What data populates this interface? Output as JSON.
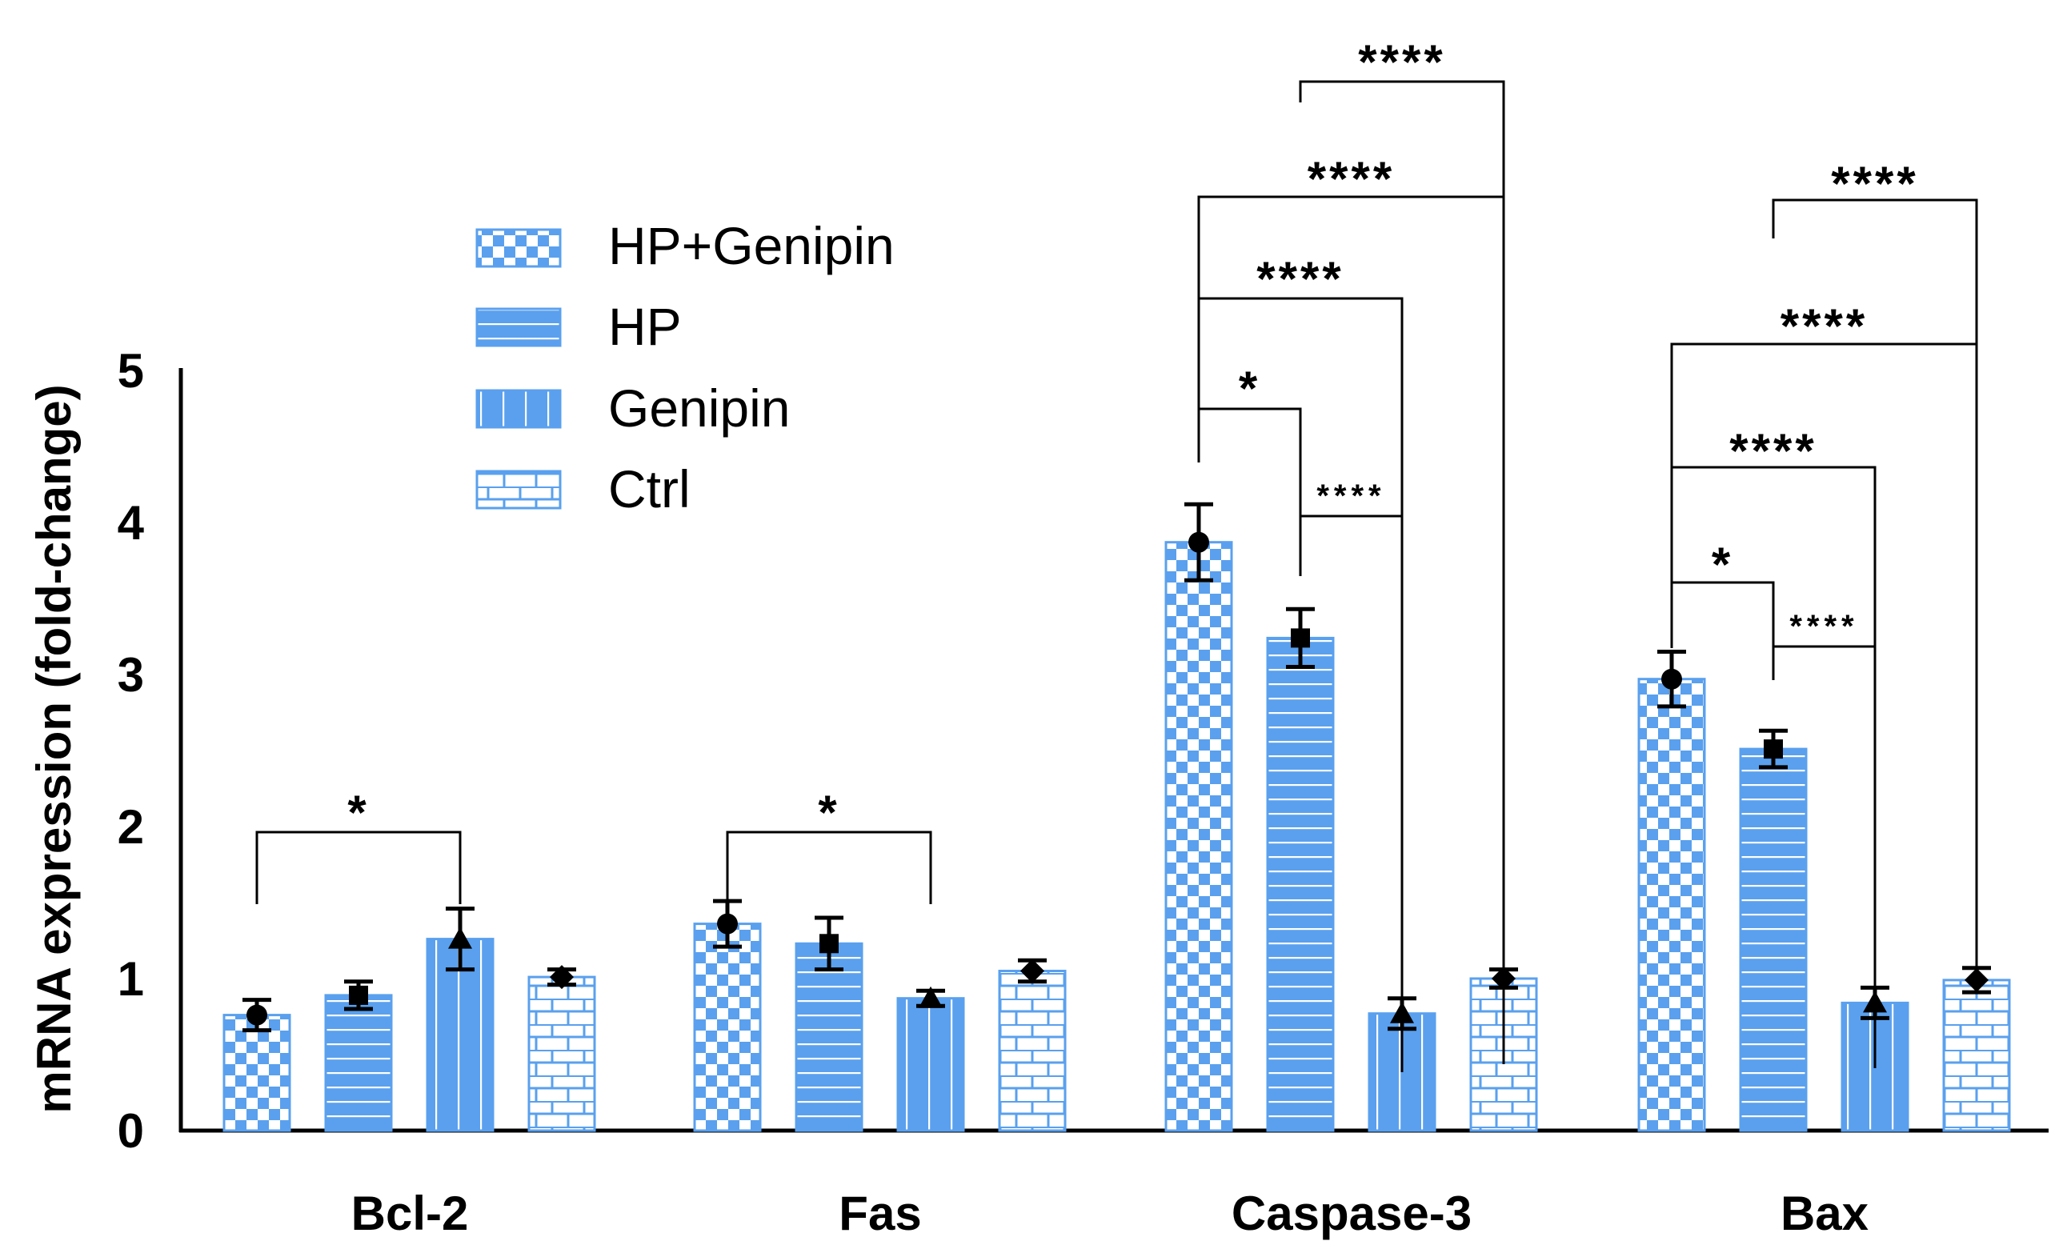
{
  "chart_data": {
    "type": "bar",
    "title": "",
    "xlabel": "",
    "ylabel": "mRNA expression (fold-change)",
    "ylim": [
      0,
      5
    ],
    "yticks": [
      "0",
      "1",
      "2",
      "3",
      "4",
      "5"
    ],
    "grid": false,
    "legend_position": "top-left",
    "categories": [
      "Bcl-2",
      "Fas",
      "Caspase-3",
      "Bax"
    ],
    "series": [
      {
        "name": "HP+Genipin",
        "marker": "circle",
        "pattern": "checker",
        "values": [
          0.76,
          1.36,
          3.87,
          2.97
        ],
        "errors": [
          0.1,
          0.15,
          0.25,
          0.18
        ]
      },
      {
        "name": "HP",
        "marker": "square",
        "pattern": "horizontal-lines",
        "values": [
          0.89,
          1.23,
          3.24,
          2.51
        ],
        "errors": [
          0.09,
          0.17,
          0.19,
          0.12
        ]
      },
      {
        "name": "Genipin",
        "marker": "triangle",
        "pattern": "vertical-lines",
        "values": [
          1.26,
          0.87,
          0.77,
          0.84
        ],
        "errors": [
          0.2,
          0.05,
          0.1,
          0.1
        ]
      },
      {
        "name": "Ctrl",
        "marker": "diamond",
        "pattern": "bricks",
        "values": [
          1.01,
          1.05,
          1.0,
          0.99
        ],
        "errors": [
          0.05,
          0.07,
          0.06,
          0.08
        ]
      }
    ],
    "significance": [
      {
        "category": "Bcl-2",
        "from": "HP+Genipin",
        "to": "Genipin",
        "label": "*"
      },
      {
        "category": "Fas",
        "from": "HP+Genipin",
        "to": "Genipin",
        "label": "*"
      },
      {
        "category": "Caspase-3",
        "from": "HP+Genipin",
        "to": "HP",
        "label": "*"
      },
      {
        "category": "Caspase-3",
        "from": "HP",
        "to": "Genipin",
        "label": "****",
        "small": true
      },
      {
        "category": "Caspase-3",
        "from": "HP+Genipin",
        "to": "Genipin",
        "label": "****"
      },
      {
        "category": "Caspase-3",
        "from": "HP+Genipin",
        "to": "Ctrl",
        "label": "****"
      },
      {
        "category": "Caspase-3",
        "from": "HP",
        "to": "Ctrl",
        "label": "****"
      },
      {
        "category": "Bax",
        "from": "HP+Genipin",
        "to": "HP",
        "label": "*"
      },
      {
        "category": "Bax",
        "from": "HP",
        "to": "Genipin",
        "label": "****",
        "small": true
      },
      {
        "category": "Bax",
        "from": "HP+Genipin",
        "to": "Genipin",
        "label": "****"
      },
      {
        "category": "Bax",
        "from": "HP+Genipin",
        "to": "Ctrl",
        "label": "****"
      },
      {
        "category": "Bax",
        "from": "HP",
        "to": "Ctrl",
        "label": "****"
      }
    ],
    "colors": {
      "bar": "#5aa0ee",
      "pattern": "#ffffff",
      "axis": "#000000"
    }
  }
}
